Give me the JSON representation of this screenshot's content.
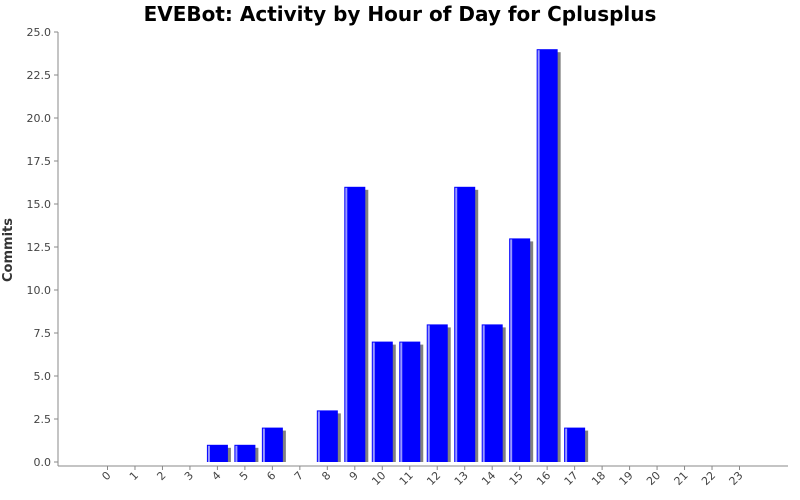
{
  "chart_data": {
    "type": "bar",
    "title": "EVEBot: Activity by Hour of Day for Cplusplus",
    "xlabel": "",
    "ylabel": "Commits",
    "categories": [
      "0",
      "1",
      "2",
      "3",
      "4",
      "5",
      "6",
      "7",
      "8",
      "9",
      "10",
      "11",
      "12",
      "13",
      "14",
      "15",
      "16",
      "17",
      "18",
      "19",
      "20",
      "21",
      "22",
      "23"
    ],
    "values": [
      0,
      0,
      0,
      0,
      1,
      1,
      2,
      0,
      3,
      16,
      7,
      7,
      8,
      16,
      8,
      13,
      24,
      2,
      0,
      0,
      0,
      0,
      0,
      0
    ],
    "ylim": [
      0,
      25
    ],
    "yticks": [
      "0.0",
      "2.5",
      "5.0",
      "7.5",
      "10.0",
      "12.5",
      "15.0",
      "17.5",
      "20.0",
      "22.5",
      "25.0"
    ],
    "grid": false,
    "colors": {
      "bar": "#0000ff",
      "bar_highlight": "#9999ff",
      "shadow": "#808080",
      "axis": "#888888"
    }
  }
}
